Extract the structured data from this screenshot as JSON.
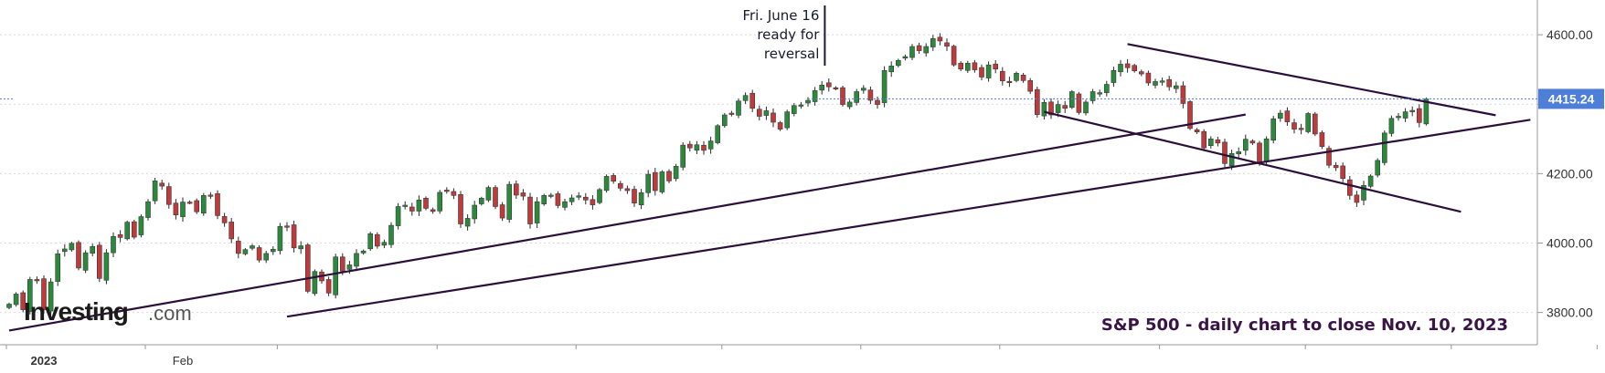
{
  "chart_data": {
    "type": "candlestick",
    "instrument_caption": "S&P 500 - daily chart to close Nov. 10, 2023",
    "y_ticks": [
      "4600.00",
      "4400.00",
      "4200.00",
      "4000.00",
      "3800.00"
    ],
    "y_tick_values": [
      4600,
      4400,
      4200,
      4000,
      3800
    ],
    "ylim": [
      3710,
      4700
    ],
    "x_labels": [
      {
        "label": "2023",
        "day_index": 0,
        "bold": true
      },
      {
        "label": "Feb",
        "day_index": 20,
        "bold": false
      }
    ],
    "month_boundaries_day_index": [
      0,
      20,
      39,
      62,
      82,
      103,
      123,
      143,
      166,
      187,
      208,
      229
    ],
    "last_price": {
      "value": 4415.24,
      "label": "4415.24"
    },
    "annotation": {
      "lines": [
        "Fri. June 16",
        "ready for",
        "reversal"
      ],
      "day_index": 114
    },
    "closes": [
      3824,
      3853,
      3808,
      3895,
      3892,
      3808,
      3888,
      3969,
      3983,
      3999,
      3928,
      3972,
      3990,
      3898,
      3972,
      4019,
      4016,
      4060,
      4017,
      4076,
      4119,
      4179,
      4164,
      4111,
      4081,
      4118,
      4117,
      4090,
      4137,
      4136,
      4079,
      4058,
      4012,
      3970,
      3981,
      3992,
      3951,
      3970,
      3982,
      4048,
      4046,
      3986,
      3992,
      3861,
      3918,
      3891,
      3856,
      3960,
      3919,
      3937,
      3970,
      3977,
      4027,
      3991,
      4002,
      4051,
      4105,
      4109,
      4092,
      4124,
      4100,
      4091,
      4146,
      4151,
      4137,
      4055,
      4071,
      4109,
      4129,
      4160,
      4105,
      4072,
      4169,
      4138,
      4135,
      4055,
      4119,
      4137,
      4138,
      4108,
      4119,
      4130,
      4136,
      4124,
      4110,
      4154,
      4192,
      4178,
      4158,
      4151,
      4115,
      4145,
      4198,
      4151,
      4205,
      4179,
      4221,
      4282,
      4274,
      4283,
      4267,
      4294,
      4338,
      4369,
      4372,
      4409,
      4425,
      4388,
      4365,
      4381,
      4348,
      4328,
      4378,
      4396,
      4398,
      4411,
      4439,
      4455,
      4450,
      4445,
      4399,
      4406,
      4436,
      4446,
      4411,
      4399,
      4497,
      4510,
      4526,
      4537,
      4566,
      4554,
      4566,
      4589,
      4582,
      4567,
      4513,
      4501,
      4518,
      4499,
      4478,
      4513,
      4501,
      4467,
      4464,
      4489,
      4468,
      4437,
      4370,
      4405,
      4369,
      4399,
      4388,
      4436,
      4376,
      4406,
      4436,
      4433,
      4457,
      4497,
      4515,
      4505,
      4496,
      4487,
      4461,
      4465,
      4467,
      4450,
      4453,
      4402,
      4330,
      4320,
      4274,
      4300,
      4288,
      4229,
      4258,
      4263,
      4299,
      4288,
      4229,
      4300,
      4358,
      4374,
      4349,
      4328,
      4327,
      4373,
      4314,
      4278,
      4224,
      4217,
      4186,
      4137,
      4117,
      4166,
      4193,
      4238,
      4317,
      4359,
      4365,
      4378,
      4382,
      4347,
      4415
    ],
    "trendlines": [
      {
        "from": [
          0,
          3748
        ],
        "to": [
          178,
          4370
        ]
      },
      {
        "from": [
          40,
          3788
        ],
        "to": [
          219,
          4355
        ]
      },
      {
        "from": [
          149,
          4378
        ],
        "to": [
          209,
          4090
        ]
      },
      {
        "from": [
          161,
          4573
        ],
        "to": [
          214,
          4368
        ]
      }
    ],
    "colors": {
      "up": "#2a8a3c",
      "down": "#c0393b",
      "wick": "#2a2a2a",
      "trendline": "#2b0f3a",
      "last_price_line": "#4e7fd8",
      "last_price_tag": "#4e7fd8",
      "grid": "#d9d9d9",
      "axis": "#999999",
      "caption": "#3a1446"
    }
  },
  "branding": {
    "logo_text": "Investing",
    "logo_suffix": ".com"
  }
}
